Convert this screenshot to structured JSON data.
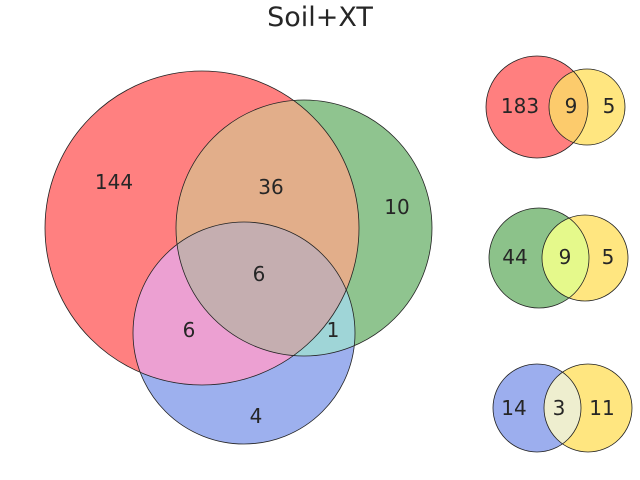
{
  "chart_data": [
    {
      "type": "venn3",
      "title": "Soil+XT",
      "sets": [
        {
          "color": "#ff0000"
        },
        {
          "color": "#1e8c1e"
        },
        {
          "color": "#2850dc"
        }
      ],
      "regions": {
        "A_only": "144",
        "B_only": "10",
        "C_only": "4",
        "AB_only": "36",
        "AC_only": "6",
        "BC_only": "1",
        "ABC": "6"
      },
      "fills": {
        "A_only": "#ff8080",
        "B_only": "#8fc48f",
        "C_only": "#9db0ee",
        "AB_only": "#e2ae8a",
        "AC_only": "#eca0d2",
        "BC_only": "#9fd5d7",
        "ABC": "#c5aeb0"
      }
    },
    {
      "type": "venn2",
      "regions": {
        "A_only": "183",
        "AB": "9",
        "B_only": "5"
      },
      "fills": {
        "A_only": "#ff7f7f",
        "AB": "#fccb6c",
        "B_only": "#ffe680"
      }
    },
    {
      "type": "venn2",
      "regions": {
        "A_only": "44",
        "AB": "9",
        "B_only": "5"
      },
      "fills": {
        "A_only": "#8cc28a",
        "AB": "#e5f98b",
        "B_only": "#ffe680"
      }
    },
    {
      "type": "venn2",
      "regions": {
        "A_only": "14",
        "AB": "3",
        "B_only": "11"
      },
      "fills": {
        "A_only": "#9caeee",
        "AB": "#eeeecf",
        "B_only": "#ffe680"
      }
    }
  ]
}
